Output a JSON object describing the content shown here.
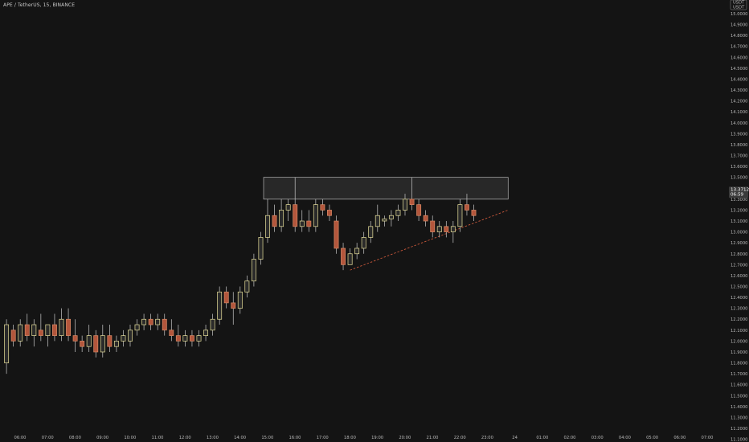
{
  "header": {
    "symbol_line": "APE / TetherUS, 15, BINANCE"
  },
  "currency": {
    "line1": "USDT",
    "line2": "USDT"
  },
  "price_badge": {
    "price": "13.3712",
    "countdown": "06:59"
  },
  "colors": {
    "background": "#141414",
    "up_body": "#2a2a2a",
    "up_border": "#e8e09a",
    "down_body": "#b3563c",
    "down_border": "#d88a66",
    "wick": "#c9c9c9",
    "zone_fill": "#2a2a2a",
    "zone_border": "#cfcfcf",
    "trendline": "#c8573a",
    "badge": "#3a3a3a"
  },
  "chart_data": {
    "type": "candlestick",
    "y_ticks": [
      "11.1000",
      "11.2000",
      "11.3000",
      "11.4000",
      "11.5000",
      "11.6000",
      "11.7000",
      "11.8000",
      "11.9000",
      "12.0000",
      "12.1000",
      "12.2000",
      "12.3000",
      "12.4000",
      "12.5000",
      "12.6000",
      "12.7000",
      "12.8000",
      "12.9000",
      "13.0000",
      "13.1000",
      "13.2000",
      "13.3000",
      "13.4000",
      "13.5000",
      "13.6000",
      "13.7000",
      "13.8000",
      "13.9000",
      "14.0000",
      "14.1000",
      "14.2000",
      "14.3000",
      "14.4000",
      "14.5000",
      "14.6000",
      "14.7000",
      "14.8000",
      "14.9000",
      "15.0000"
    ],
    "x_ticks": [
      "06:00",
      "07:00",
      "08:00",
      "09:00",
      "10:00",
      "11:00",
      "12:00",
      "13:00",
      "14:00",
      "15:00",
      "16:00",
      "17:00",
      "18:00",
      "19:00",
      "20:00",
      "21:00",
      "22:00",
      "23:00",
      "24",
      "01:00",
      "02:00",
      "03:00",
      "04:00",
      "05:00",
      "06:00",
      "07:00"
    ],
    "ylim": [
      11.05,
      15.1
    ],
    "time_range": [
      "05:00",
      "07:45"
    ],
    "candles": [
      {
        "t": "05:30",
        "o": 11.8,
        "h": 12.2,
        "l": 11.7,
        "c": 12.15
      },
      {
        "t": "05:45",
        "o": 12.1,
        "h": 12.15,
        "l": 11.95,
        "c": 12.0
      },
      {
        "t": "06:00",
        "o": 12.0,
        "h": 12.2,
        "l": 11.95,
        "c": 12.15
      },
      {
        "t": "06:15",
        "o": 12.15,
        "h": 12.25,
        "l": 12.0,
        "c": 12.05
      },
      {
        "t": "06:30",
        "o": 12.05,
        "h": 12.2,
        "l": 11.95,
        "c": 12.15
      },
      {
        "t": "06:45",
        "o": 12.1,
        "h": 12.25,
        "l": 12.0,
        "c": 12.05
      },
      {
        "t": "07:00",
        "o": 12.05,
        "h": 12.15,
        "l": 11.95,
        "c": 12.15
      },
      {
        "t": "07:15",
        "o": 12.15,
        "h": 12.25,
        "l": 12.0,
        "c": 12.05
      },
      {
        "t": "07:30",
        "o": 12.05,
        "h": 12.3,
        "l": 12.0,
        "c": 12.2
      },
      {
        "t": "07:45",
        "o": 12.2,
        "h": 12.3,
        "l": 12.0,
        "c": 12.05
      },
      {
        "t": "08:00",
        "o": 12.05,
        "h": 12.2,
        "l": 11.9,
        "c": 12.0
      },
      {
        "t": "08:15",
        "o": 12.0,
        "h": 12.05,
        "l": 11.9,
        "c": 11.95
      },
      {
        "t": "08:30",
        "o": 11.95,
        "h": 12.15,
        "l": 11.9,
        "c": 12.05
      },
      {
        "t": "08:45",
        "o": 12.05,
        "h": 12.1,
        "l": 11.85,
        "c": 11.9
      },
      {
        "t": "09:00",
        "o": 11.9,
        "h": 12.15,
        "l": 11.85,
        "c": 12.05
      },
      {
        "t": "09:15",
        "o": 12.05,
        "h": 12.15,
        "l": 11.9,
        "c": 11.95
      },
      {
        "t": "09:30",
        "o": 11.95,
        "h": 12.05,
        "l": 11.9,
        "c": 12.0
      },
      {
        "t": "09:45",
        "o": 12.0,
        "h": 12.1,
        "l": 11.95,
        "c": 12.05
      },
      {
        "t": "10:00",
        "o": 12.0,
        "h": 12.15,
        "l": 11.95,
        "c": 12.1
      },
      {
        "t": "10:15",
        "o": 12.1,
        "h": 12.2,
        "l": 12.05,
        "c": 12.15
      },
      {
        "t": "10:30",
        "o": 12.15,
        "h": 12.25,
        "l": 12.1,
        "c": 12.2
      },
      {
        "t": "10:45",
        "o": 12.2,
        "h": 12.25,
        "l": 12.1,
        "c": 12.15
      },
      {
        "t": "11:00",
        "o": 12.15,
        "h": 12.25,
        "l": 12.1,
        "c": 12.2
      },
      {
        "t": "11:15",
        "o": 12.2,
        "h": 12.25,
        "l": 12.05,
        "c": 12.1
      },
      {
        "t": "11:30",
        "o": 12.1,
        "h": 12.2,
        "l": 12.0,
        "c": 12.05
      },
      {
        "t": "11:45",
        "o": 12.05,
        "h": 12.15,
        "l": 11.95,
        "c": 12.0
      },
      {
        "t": "12:00",
        "o": 12.0,
        "h": 12.1,
        "l": 11.95,
        "c": 12.05
      },
      {
        "t": "12:15",
        "o": 12.05,
        "h": 12.1,
        "l": 11.95,
        "c": 12.0
      },
      {
        "t": "12:30",
        "o": 12.0,
        "h": 12.1,
        "l": 11.95,
        "c": 12.05
      },
      {
        "t": "12:45",
        "o": 12.05,
        "h": 12.15,
        "l": 12.0,
        "c": 12.1
      },
      {
        "t": "13:00",
        "o": 12.1,
        "h": 12.25,
        "l": 12.05,
        "c": 12.2
      },
      {
        "t": "13:15",
        "o": 12.2,
        "h": 12.5,
        "l": 12.15,
        "c": 12.45
      },
      {
        "t": "13:30",
        "o": 12.45,
        "h": 12.5,
        "l": 12.3,
        "c": 12.35
      },
      {
        "t": "13:45",
        "o": 12.35,
        "h": 12.45,
        "l": 12.15,
        "c": 12.3
      },
      {
        "t": "14:00",
        "o": 12.3,
        "h": 12.5,
        "l": 12.25,
        "c": 12.45
      },
      {
        "t": "14:15",
        "o": 12.45,
        "h": 12.6,
        "l": 12.4,
        "c": 12.55
      },
      {
        "t": "14:30",
        "o": 12.55,
        "h": 12.8,
        "l": 12.5,
        "c": 12.75
      },
      {
        "t": "14:45",
        "o": 12.75,
        "h": 13.0,
        "l": 12.7,
        "c": 12.95
      },
      {
        "t": "15:00",
        "o": 12.95,
        "h": 13.3,
        "l": 12.9,
        "c": 13.15
      },
      {
        "t": "15:15",
        "o": 13.15,
        "h": 13.25,
        "l": 13.0,
        "c": 13.05
      },
      {
        "t": "15:30",
        "o": 13.05,
        "h": 13.3,
        "l": 13.0,
        "c": 13.2
      },
      {
        "t": "15:45",
        "o": 13.2,
        "h": 13.3,
        "l": 13.1,
        "c": 13.25
      },
      {
        "t": "16:00",
        "o": 13.25,
        "h": 13.5,
        "l": 13.0,
        "c": 13.05
      },
      {
        "t": "16:15",
        "o": 13.05,
        "h": 13.2,
        "l": 13.0,
        "c": 13.1
      },
      {
        "t": "16:30",
        "o": 13.1,
        "h": 13.2,
        "l": 13.0,
        "c": 13.05
      },
      {
        "t": "16:45",
        "o": 13.05,
        "h": 13.3,
        "l": 13.0,
        "c": 13.25
      },
      {
        "t": "17:00",
        "o": 13.25,
        "h": 13.3,
        "l": 13.15,
        "c": 13.2
      },
      {
        "t": "17:15",
        "o": 13.2,
        "h": 13.25,
        "l": 13.1,
        "c": 13.15
      },
      {
        "t": "17:30",
        "o": 13.1,
        "h": 13.15,
        "l": 12.8,
        "c": 12.85
      },
      {
        "t": "17:45",
        "o": 12.85,
        "h": 12.9,
        "l": 12.65,
        "c": 12.7
      },
      {
        "t": "18:00",
        "o": 12.7,
        "h": 12.85,
        "l": 12.7,
        "c": 12.8
      },
      {
        "t": "18:15",
        "o": 12.8,
        "h": 12.9,
        "l": 12.75,
        "c": 12.85
      },
      {
        "t": "18:30",
        "o": 12.85,
        "h": 13.0,
        "l": 12.8,
        "c": 12.95
      },
      {
        "t": "18:45",
        "o": 12.95,
        "h": 13.1,
        "l": 12.9,
        "c": 13.05
      },
      {
        "t": "19:00",
        "o": 13.05,
        "h": 13.25,
        "l": 13.0,
        "c": 13.15
      },
      {
        "t": "19:15",
        "o": 13.1,
        "h": 13.15,
        "l": 13.05,
        "c": 13.12
      },
      {
        "t": "19:30",
        "o": 13.12,
        "h": 13.2,
        "l": 13.05,
        "c": 13.15
      },
      {
        "t": "19:45",
        "o": 13.15,
        "h": 13.25,
        "l": 13.1,
        "c": 13.2
      },
      {
        "t": "20:00",
        "o": 13.2,
        "h": 13.35,
        "l": 13.15,
        "c": 13.3
      },
      {
        "t": "20:15",
        "o": 13.3,
        "h": 13.5,
        "l": 13.2,
        "c": 13.25
      },
      {
        "t": "20:30",
        "o": 13.25,
        "h": 13.3,
        "l": 13.1,
        "c": 13.15
      },
      {
        "t": "20:45",
        "o": 13.15,
        "h": 13.2,
        "l": 13.05,
        "c": 13.1
      },
      {
        "t": "21:00",
        "o": 13.1,
        "h": 13.15,
        "l": 12.95,
        "c": 13.0
      },
      {
        "t": "21:15",
        "o": 13.0,
        "h": 13.1,
        "l": 12.95,
        "c": 13.05
      },
      {
        "t": "21:30",
        "o": 13.05,
        "h": 13.1,
        "l": 12.95,
        "c": 13.0
      },
      {
        "t": "21:45",
        "o": 13.0,
        "h": 13.1,
        "l": 12.9,
        "c": 13.05
      },
      {
        "t": "22:00",
        "o": 13.05,
        "h": 13.3,
        "l": 13.0,
        "c": 13.25
      },
      {
        "t": "22:15",
        "o": 13.25,
        "h": 13.35,
        "l": 13.15,
        "c": 13.2
      },
      {
        "t": "22:30",
        "o": 13.2,
        "h": 13.25,
        "l": 13.1,
        "c": 13.15
      }
    ],
    "resistance_zone": {
      "time_start": "15:00",
      "time_end": "23:45",
      "price_top": 13.5,
      "price_bottom": 13.3
    },
    "trendline": {
      "t1": "18:00",
      "p1": 12.65,
      "t2": "23:45",
      "p2": 13.2
    },
    "grid": false
  }
}
